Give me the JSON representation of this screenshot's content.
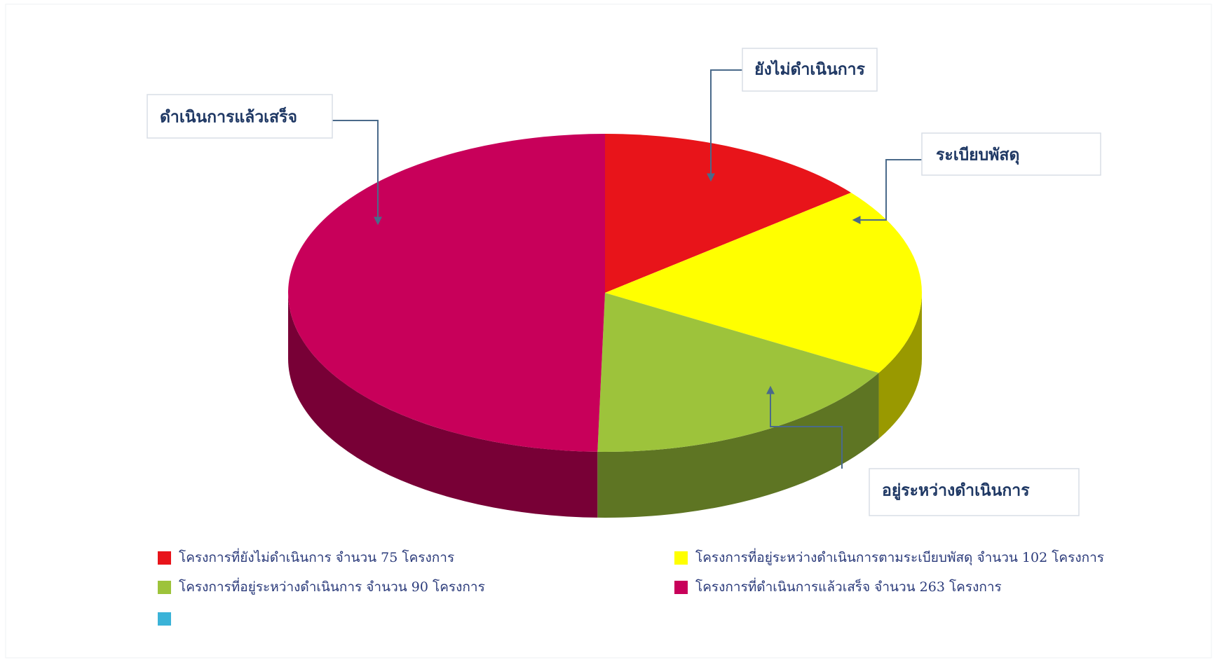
{
  "chart_data": {
    "type": "pie",
    "categories": [
      "โครงการที่ยังไม่ดำเนินการ จำนวน 75 โครงการ",
      "โครงการที่อยู่ระหว่างดำเนินการตามระเบียบพัสดุ จำนวน 102 โครงการ",
      "โครงการที่อยู่ระหว่างดำเนินการ จำนวน 90 โครงการ",
      "โครงการที่ดำเนินการแล้วเสร็จ จำนวน 263 โครงการ"
    ],
    "values": [
      75,
      102,
      90,
      263
    ],
    "colors": [
      "#e8141a",
      "#ffff00",
      "#9dc33b",
      "#c8005a"
    ],
    "labels": [
      "ยังไม่ดำเนินการ",
      "ระเบียบพัสดุ",
      "อยู่ระหว่างดำเนินการ",
      "ดำเนินการแล้วเสร็จ"
    ]
  }
}
